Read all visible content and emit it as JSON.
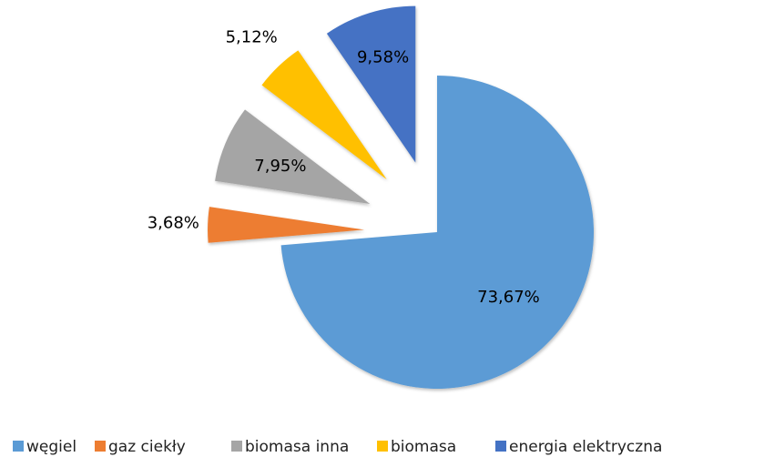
{
  "chart_data": {
    "type": "pie",
    "categories": [
      "węgiel",
      "gaz ciekły",
      "biomasa inna",
      "biomasa",
      "energia elektryczna"
    ],
    "values": [
      73.67,
      3.68,
      7.95,
      5.12,
      9.58
    ],
    "value_labels": [
      "73,67%",
      "3,68%",
      "7,95%",
      "5,12%",
      "9,58%"
    ],
    "colors": [
      "#5b9bd5",
      "#ed7d31",
      "#a5a5a5",
      "#ffc000",
      "#4472c4"
    ],
    "legend": "bottom"
  }
}
